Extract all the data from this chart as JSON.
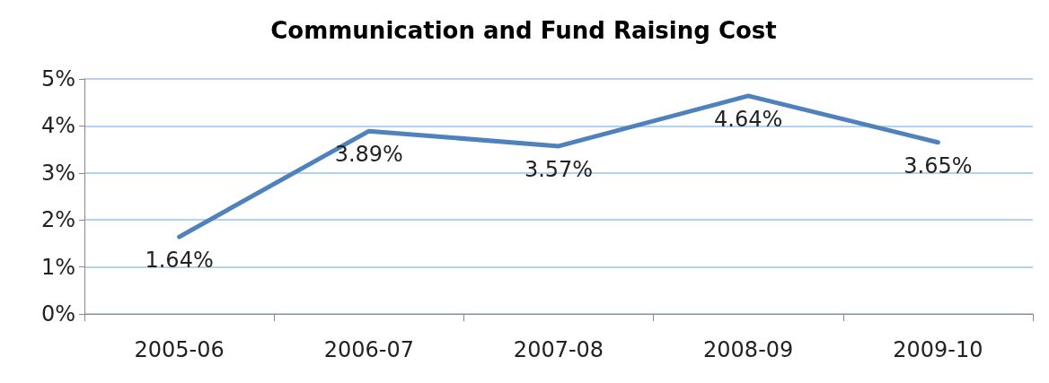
{
  "chart_data": {
    "type": "line",
    "title": "Communication and Fund Raising Cost",
    "categories": [
      "2005-06",
      "2006-07",
      "2007-08",
      "2008-09",
      "2009-10"
    ],
    "series": [
      {
        "color": "#4f81bd",
        "values": [
          1.64,
          3.89,
          3.57,
          4.64,
          3.65
        ],
        "value_labels": [
          "1.64%",
          "3.89%",
          "3.57%",
          "4.64%",
          "3.65%"
        ]
      }
    ],
    "ylim": [
      0,
      5
    ],
    "yticks": [
      {
        "value": 0,
        "label": "0%"
      },
      {
        "value": 1,
        "label": "1%"
      },
      {
        "value": 2,
        "label": "2%"
      },
      {
        "value": 3,
        "label": "3%"
      },
      {
        "value": 4,
        "label": "4%"
      },
      {
        "value": 5,
        "label": "5%"
      }
    ],
    "grid": "y",
    "marker": "none",
    "line_style": "solid"
  }
}
